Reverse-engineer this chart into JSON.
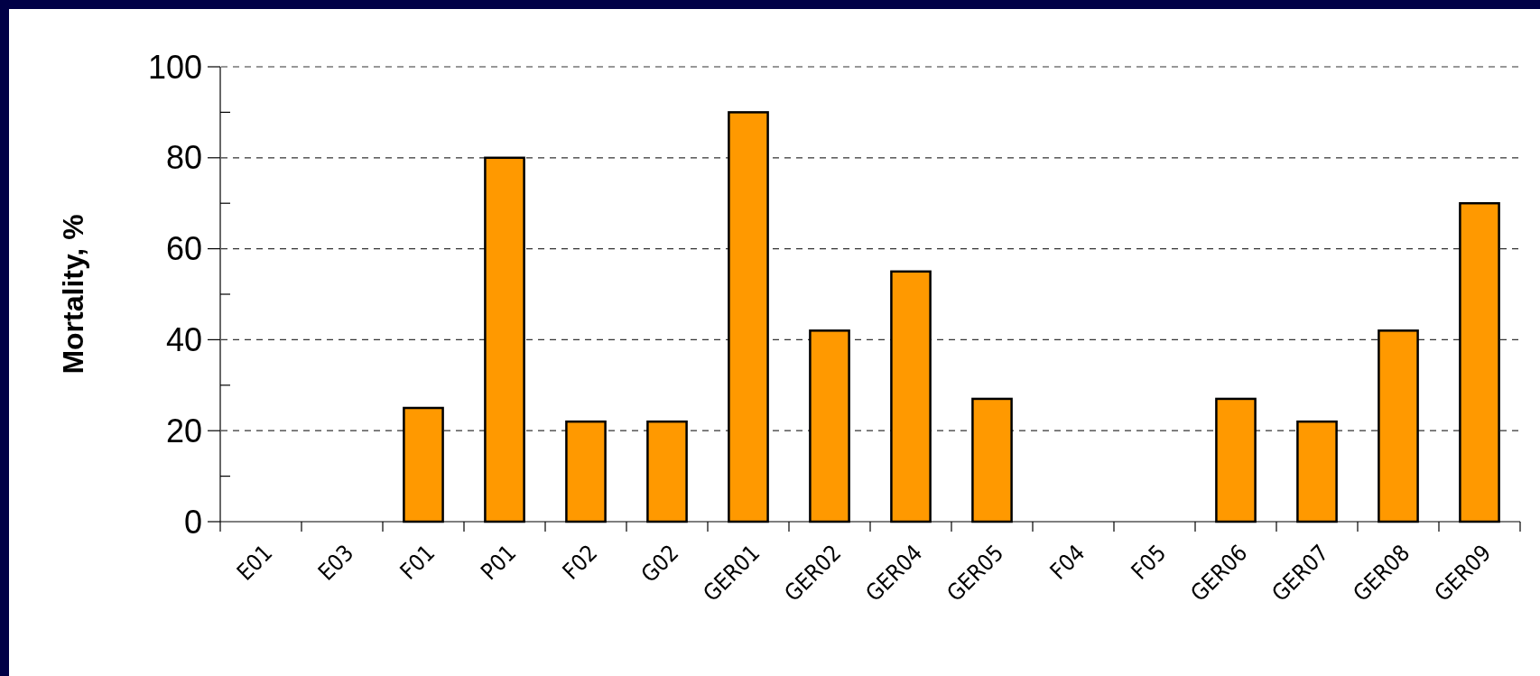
{
  "chart_data": {
    "type": "bar",
    "ylabel": "Mortality, %",
    "categories": [
      "E01",
      "E03",
      "F01",
      "P01",
      "F02",
      "G02",
      "GER01",
      "GER02",
      "GER04",
      "GER05",
      "F04",
      "F05",
      "GER06",
      "GER07",
      "GER08",
      "GER09"
    ],
    "values": [
      0,
      0,
      25,
      80,
      22,
      22,
      90,
      42,
      55,
      27,
      0,
      0,
      27,
      22,
      42,
      70
    ],
    "color": "#ff9900",
    "ylim": [
      0,
      100
    ],
    "yticks": [
      0,
      {
        "value": 10,
        "label": null
      },
      20,
      {
        "value": 30,
        "label": null
      },
      40,
      {
        "value": 50,
        "label": null
      },
      60,
      {
        "value": 70,
        "label": null
      },
      80,
      {
        "value": 90,
        "label": null
      },
      100
    ],
    "grid": "y"
  }
}
